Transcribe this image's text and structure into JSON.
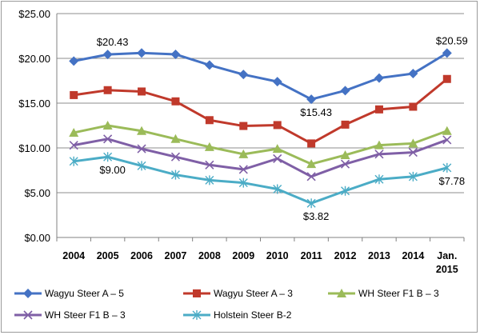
{
  "chart_data": {
    "type": "line",
    "title": "",
    "xlabel": "",
    "ylabel": "",
    "categories": [
      "2004",
      "2005",
      "2006",
      "2007",
      "2008",
      "2009",
      "2010",
      "2011",
      "2012",
      "2013",
      "2014",
      "Jan. 2015"
    ],
    "ylim": [
      0,
      25
    ],
    "yticks": [
      "$0.00",
      "$5.00",
      "$10.00",
      "$15.00",
      "$20.00",
      "$25.00"
    ],
    "grid": "horizontal",
    "legend_position": "bottom",
    "series": [
      {
        "name": "Wagyu Steer A – 5",
        "color": "#4472c4",
        "marker": "diamond",
        "values": [
          19.7,
          20.43,
          20.6,
          20.45,
          19.25,
          18.2,
          17.4,
          15.43,
          16.4,
          17.8,
          18.3,
          20.59
        ]
      },
      {
        "name": "Wagyu Steer A – 3",
        "color": "#c0392b",
        "marker": "square",
        "values": [
          15.9,
          16.45,
          16.3,
          15.2,
          13.1,
          12.45,
          12.55,
          10.5,
          12.6,
          14.3,
          14.6,
          17.7
        ]
      },
      {
        "name": "WH Steer F1 B – 3",
        "color": "#9bbb59",
        "marker": "triangle",
        "values": [
          11.7,
          12.5,
          11.9,
          11.0,
          10.1,
          9.3,
          9.9,
          8.2,
          9.2,
          10.3,
          10.5,
          11.9
        ]
      },
      {
        "name": "WH Steer F1 B – 3",
        "color": "#7f5fa6",
        "marker": "x",
        "values": [
          10.3,
          11.0,
          9.9,
          9.0,
          8.1,
          7.6,
          8.8,
          6.8,
          8.2,
          9.3,
          9.5,
          10.9
        ]
      },
      {
        "name": "Holstein Steer B-2",
        "color": "#4bacc6",
        "marker": "asterisk",
        "values": [
          8.5,
          9.0,
          8.0,
          7.0,
          6.4,
          6.1,
          5.4,
          3.82,
          5.2,
          6.5,
          6.8,
          7.78
        ]
      }
    ],
    "annotations": [
      {
        "series": 0,
        "index": 1,
        "text": "$20.43",
        "position": "above"
      },
      {
        "series": 0,
        "index": 7,
        "text": "$15.43",
        "position": "below"
      },
      {
        "series": 0,
        "index": 11,
        "text": "$20.59",
        "position": "above"
      },
      {
        "series": 4,
        "index": 1,
        "text": "$9.00",
        "position": "below"
      },
      {
        "series": 4,
        "index": 7,
        "text": "$3.82",
        "position": "below"
      },
      {
        "series": 4,
        "index": 11,
        "text": "$7.78",
        "position": "below"
      }
    ]
  }
}
